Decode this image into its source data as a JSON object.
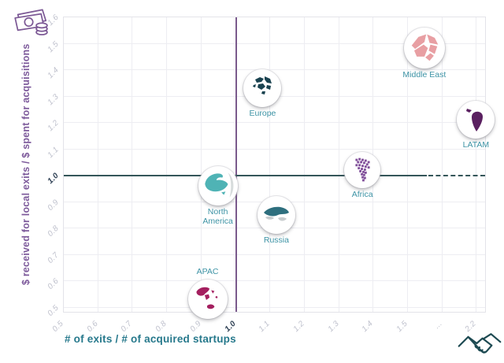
{
  "icons": {
    "top_left": "money-banknotes-and-coins",
    "bottom_right": "handshake"
  },
  "colors": {
    "axis_label_purple": "#7d5a9b",
    "axis_label_teal": "#27798c",
    "point_label_teal": "#3d93a5",
    "tick_gray": "#bfc1cd",
    "tick_bold": "#2e4054",
    "grid": "#ededf2",
    "reference_line_vertical": "#7a5a8c",
    "reference_line_horizontal": "#35565a"
  },
  "chart_data": {
    "type": "scatter",
    "title": "",
    "xlabel": "# of exits / # of acquired startups",
    "ylabel": "$ received for local exits / $ spent for acquisitions",
    "x_ticks": [
      "0.5",
      "0.6",
      "0.7",
      "0.8",
      "0.9",
      "1.0",
      "1.1",
      "1.2",
      "1.3",
      "1.4",
      "1.5",
      "...",
      "2.2"
    ],
    "y_ticks": [
      "1.6",
      "1.5",
      "1.4",
      "1.3",
      "1.2",
      "1.1",
      "1.0",
      "0.9",
      "0.8",
      "0.7",
      "0.6",
      "0.5"
    ],
    "xlim": [
      0.5,
      2.2
    ],
    "ylim": [
      0.5,
      1.6
    ],
    "grid": true,
    "legend": false,
    "axis_break": {
      "axis": "x",
      "after": 1.5,
      "label": "..."
    },
    "reference_lines": {
      "x": 1.0,
      "y": 1.0
    },
    "points": [
      {
        "region": "Europe",
        "x": 1.08,
        "y": 1.33,
        "r": 24,
        "color": "#1a4350",
        "label_position": "below"
      },
      {
        "region": "Middle East",
        "x": 1.55,
        "y": 1.48,
        "r": 26,
        "color": "#e89fa3",
        "label_position": "below"
      },
      {
        "region": "LATAM",
        "x": 2.2,
        "y": 1.21,
        "r": 24,
        "color": "#5a2060",
        "label_position": "below"
      },
      {
        "region": "Africa",
        "x": 1.37,
        "y": 1.02,
        "r": 23,
        "color": "#82519b",
        "label_position": "below"
      },
      {
        "region": "North America",
        "x": 0.95,
        "y": 0.96,
        "r": 25,
        "color": "#4fb3b5",
        "secondary_color": "#d7dcdc",
        "label_position": "below"
      },
      {
        "region": "Russia",
        "x": 1.12,
        "y": 0.85,
        "r": 24,
        "color": "#2e6f7e",
        "secondary_color": "#c7ccce",
        "label_position": "below"
      },
      {
        "region": "APAC",
        "x": 0.92,
        "y": 0.53,
        "r": 25,
        "color": "#a41f5f",
        "label_position": "above"
      }
    ]
  }
}
